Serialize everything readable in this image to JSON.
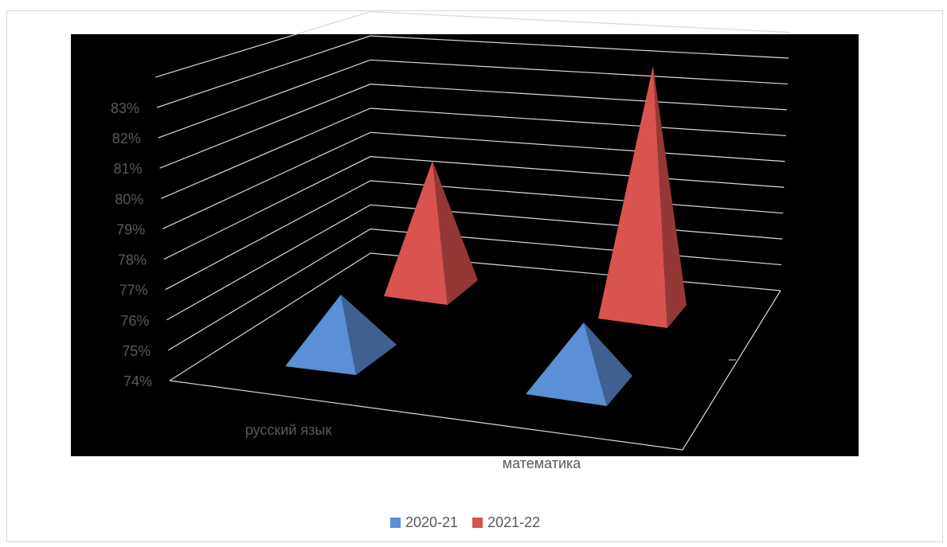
{
  "chart_data": {
    "type": "bar",
    "style": "3d-pyramid",
    "categories": [
      "русский язык",
      "математика"
    ],
    "series": [
      {
        "name": "2020-21",
        "values": [
          77,
          77
        ],
        "color": "#5B8FD6"
      },
      {
        "name": "2021-22",
        "values": [
          79,
          83.2
        ],
        "color": "#D9534F"
      }
    ],
    "y_ticks": [
      "74%",
      "75%",
      "76%",
      "77%",
      "78%",
      "79%",
      "80%",
      "81%",
      "82%",
      "83%"
    ],
    "ylim": [
      74,
      83
    ],
    "grid": true,
    "legend_position": "bottom",
    "background": "#000000"
  },
  "legend": {
    "items": [
      {
        "label": "2020-21",
        "color": "#5B8FD6"
      },
      {
        "label": "2021-22",
        "color": "#D9534F"
      }
    ]
  }
}
